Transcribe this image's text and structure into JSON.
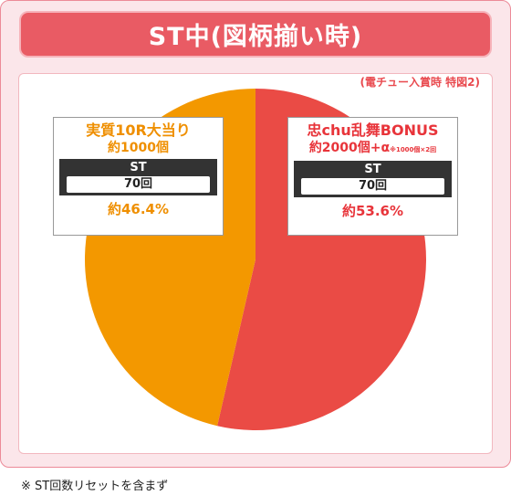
{
  "title": "ST中(図柄揃い時)",
  "note": "(電チュー入賞時 特図2)",
  "footnote": "※ ST回数リセットを含まず",
  "colors": {
    "left_slice": "#f39800",
    "right_slice": "#ea4b45",
    "left_text": "#ef8f00",
    "right_text": "#e8343a"
  },
  "chart_data": {
    "type": "pie",
    "title": "ST中(図柄揃い時)",
    "slices": [
      {
        "label": "忠chu乱舞BONUS",
        "sub": "約2000個+α",
        "sub_note": "※1000個×2回",
        "st_label": "ST",
        "st_value": "70回",
        "value": 53.6,
        "pct_label": "約53.6%"
      },
      {
        "label": "実質10R大当り",
        "sub": "約1000個",
        "st_label": "ST",
        "st_value": "70回",
        "value": 46.4,
        "pct_label": "約46.4%"
      }
    ]
  }
}
